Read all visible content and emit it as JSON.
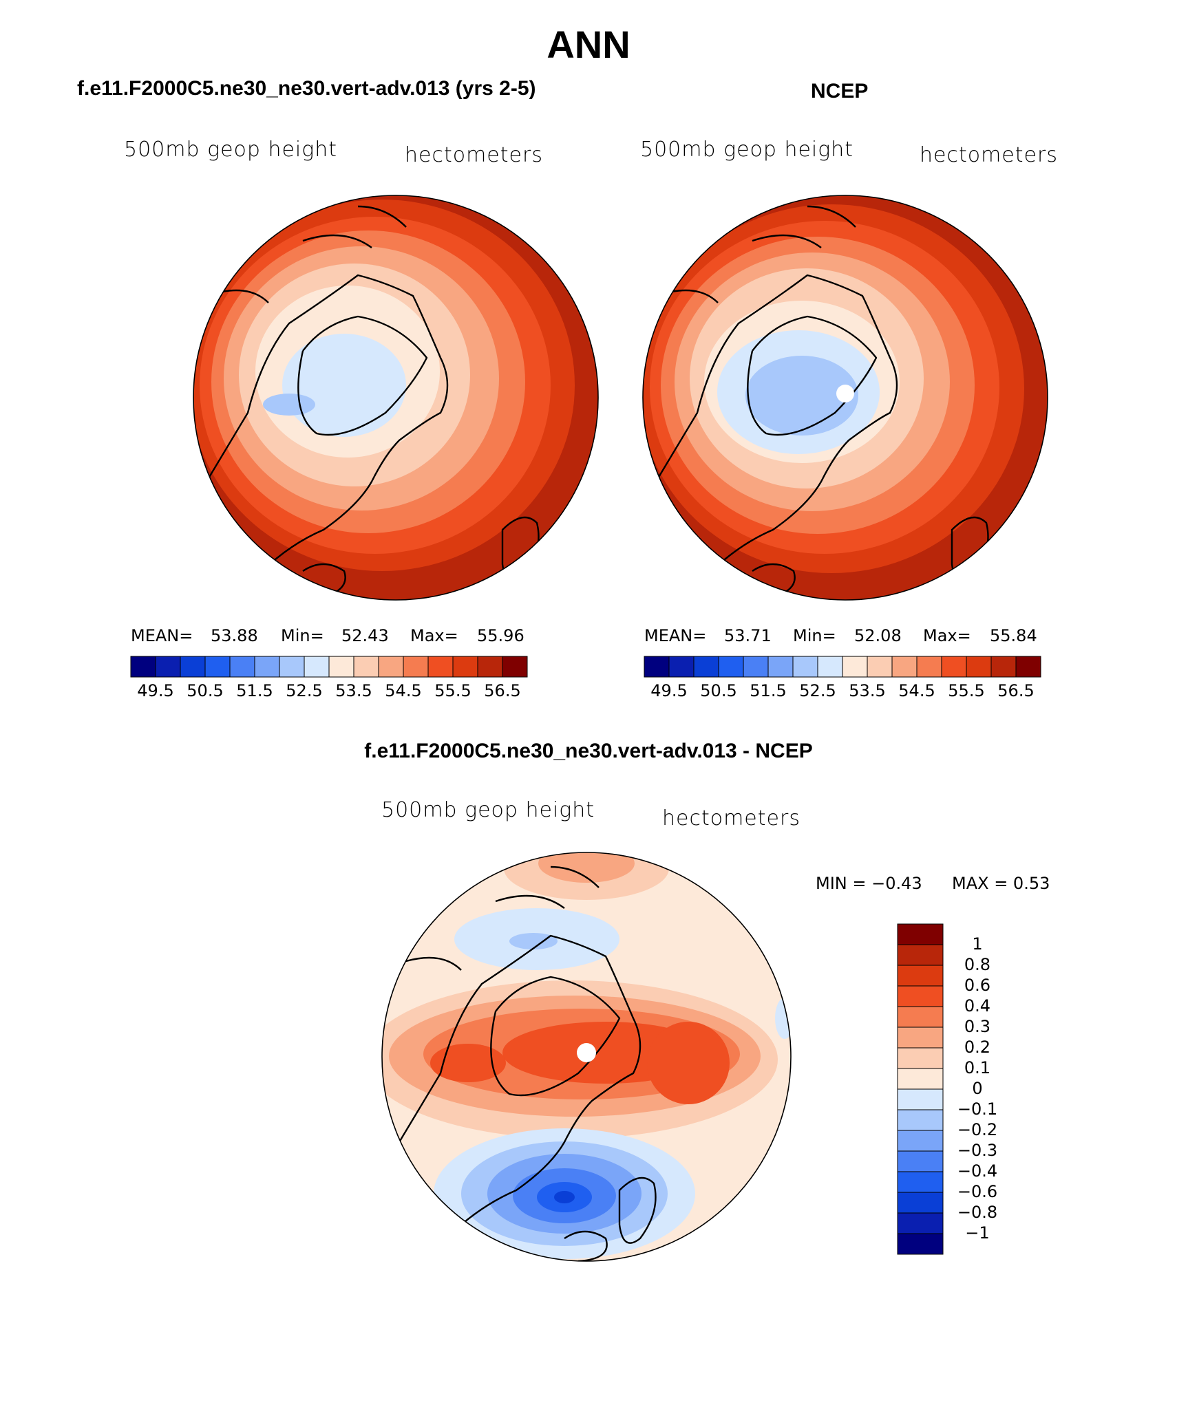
{
  "main_title": "ANN",
  "panels": [
    {
      "title": "f.e11.F2000C5.ne30_ne30.vert-adv.013 (yrs 2-5)",
      "variable_label": "500mb geop height",
      "units_label": "hectometers",
      "stats": {
        "mean_label": "MEAN=",
        "mean": "53.88",
        "min_label": "Min=",
        "min": "52.43",
        "max_label": "Max=",
        "max": "55.96"
      },
      "colorbar_ticks": [
        "49.5",
        "50.5",
        "51.5",
        "52.5",
        "53.5",
        "54.5",
        "55.5",
        "56.5"
      ]
    },
    {
      "title": "NCEP",
      "variable_label": "500mb geop height",
      "units_label": "hectometers",
      "stats": {
        "mean_label": "MEAN=",
        "mean": "53.71",
        "min_label": "Min=",
        "min": "52.08",
        "max_label": "Max=",
        "max": "55.84"
      },
      "colorbar_ticks": [
        "49.5",
        "50.5",
        "51.5",
        "52.5",
        "53.5",
        "54.5",
        "55.5",
        "56.5"
      ]
    }
  ],
  "difference": {
    "title": "f.e11.F2000C5.ne30_ne30.vert-adv.013 - NCEP",
    "variable_label": "500mb geop height",
    "units_label": "hectometers",
    "min_text": "MIN =    −0.43",
    "max_text": "MAX =     0.53",
    "colorbar_ticks": [
      "1",
      "0.8",
      "0.6",
      "0.4",
      "0.3",
      "0.2",
      "0.1",
      "0",
      "−0.1",
      "−0.2",
      "−0.3",
      "−0.4",
      "−0.6",
      "−0.8",
      "−1"
    ]
  },
  "colors": {
    "abs_scale": [
      "#00007f",
      "#0a1fb0",
      "#0a3fd6",
      "#1f5ff0",
      "#4a80f5",
      "#7aa5f8",
      "#a8c8fb",
      "#d6e8fd",
      "#fde9d9",
      "#fbcdb3",
      "#f8a681",
      "#f57c50",
      "#ef4f22",
      "#dc3b10",
      "#b8260a",
      "#7f0000"
    ],
    "diff_scale": [
      "#7f0000",
      "#b8260a",
      "#dc3b10",
      "#ef4f22",
      "#f57c50",
      "#f8a681",
      "#fbcdb3",
      "#fde9d9",
      "#d6e8fd",
      "#a8c8fb",
      "#7aa5f8",
      "#4a80f5",
      "#1f5ff0",
      "#0a3fd6",
      "#0a1fb0",
      "#00007f"
    ],
    "pole_marker": "#ffffff"
  }
}
